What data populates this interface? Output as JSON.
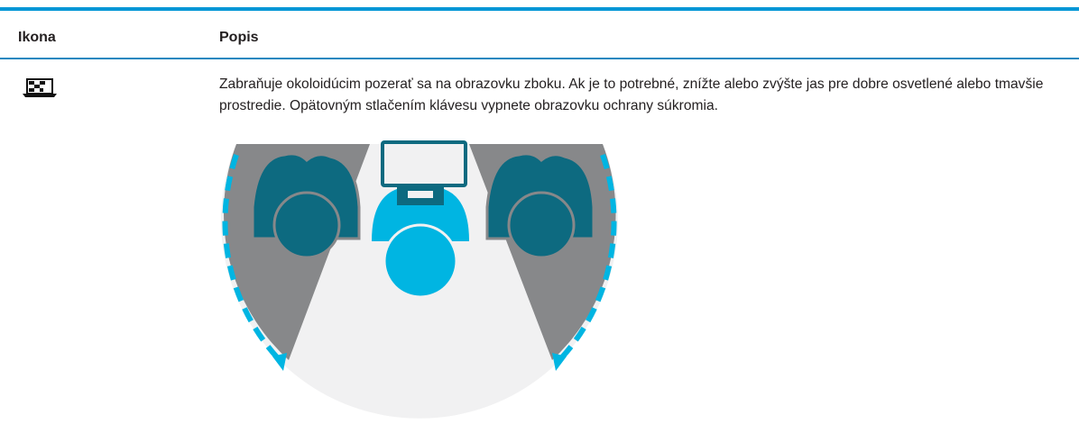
{
  "table": {
    "header": [
      "Ikona",
      "Popis"
    ],
    "rows": [
      {
        "description": "Zabraňuje okoloidúcim pozerať sa na obrazovku zboku. Ak je to potrebné, znížte alebo zvýšte jas pre dobre osvetlené alebo tmavšie prostredie. Opätovným stlačením klávesu vypnete obrazovku ochrany súkromia."
      }
    ]
  }
}
